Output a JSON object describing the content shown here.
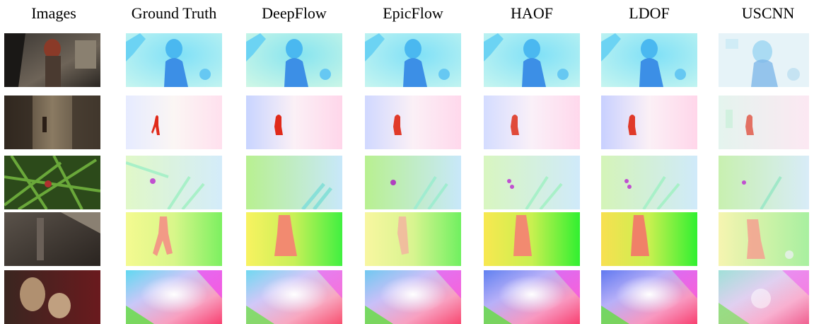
{
  "figure": {
    "columns": [
      "Images",
      "Ground Truth",
      "DeepFlow",
      "EpicFlow",
      "HAOF",
      "LDOF",
      "USCNN"
    ],
    "rows": [
      {
        "image": "scene-dark-street-girl",
        "flow_tint": "#5ec9f0",
        "object_color": "#3aa0e8"
      },
      {
        "image": "scene-alley-runner",
        "flow_tint": "#f2e8ff",
        "object_color": "#e03020"
      },
      {
        "image": "scene-bamboo-forest",
        "flow_tint": "#d8f5c8",
        "object_color": "#c050d0"
      },
      {
        "image": "scene-cave-figure",
        "flow_tint": "#e8f890",
        "object_color": "#f09070"
      },
      {
        "image": "scene-interior-red",
        "flow_tint": "#f0a8f0",
        "object_color": "#ffffff"
      }
    ]
  }
}
